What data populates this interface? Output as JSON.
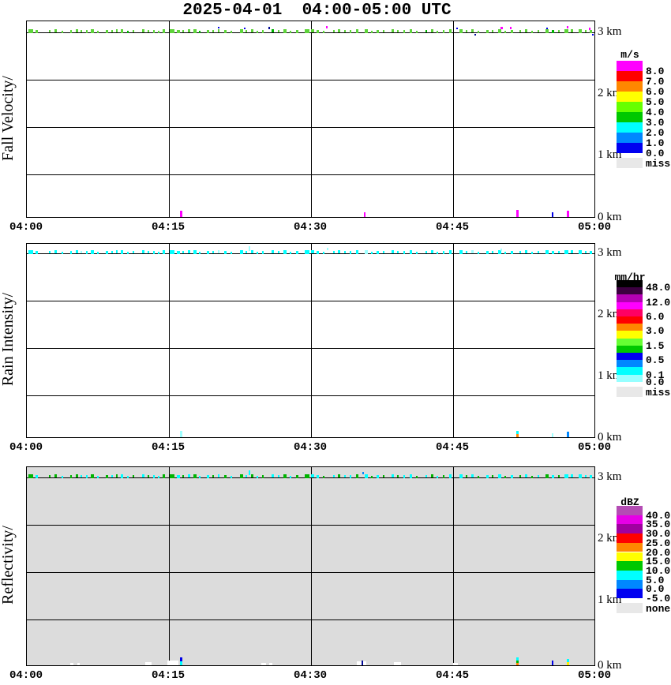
{
  "title": "2025-04-01  04:00-05:00 UTC",
  "axis": {
    "x_ticks": [
      "04:00",
      "04:15",
      "04:30",
      "04:45",
      "05:00"
    ],
    "km_labels": [
      "3 km",
      "2 km",
      "1 km",
      "0 km"
    ]
  },
  "colors": {
    "g1": "#5ED43A",
    "g2": "#00B400",
    "cy": "#00FFFF",
    "pc": "#9EFFFF",
    "bl": "#0000E6",
    "nb": "#000896",
    "mg": "#FF00FF",
    "or": "#FF8700",
    "db": "#0087FF",
    "yw": "#FFF000",
    "wh": "#FFFFFF"
  },
  "band_segments": [
    [
      2,
      6,
      5,
      -4
    ],
    [
      11,
      3,
      4,
      -3
    ],
    [
      28,
      2,
      3,
      -3
    ],
    [
      35,
      3,
      4,
      -4
    ],
    [
      44,
      2,
      3,
      -2
    ],
    [
      55,
      2,
      4,
      -3
    ],
    [
      62,
      3,
      4,
      -4
    ],
    [
      68,
      2,
      3,
      -3
    ],
    [
      75,
      2,
      4,
      -3
    ],
    [
      81,
      4,
      5,
      -4
    ],
    [
      89,
      2,
      3,
      -2
    ],
    [
      100,
      3,
      4,
      -3
    ],
    [
      107,
      2,
      3,
      -3
    ],
    [
      113,
      2,
      4,
      -4
    ],
    [
      119,
      3,
      5,
      -4
    ],
    [
      127,
      2,
      3,
      -2
    ],
    [
      134,
      2,
      3,
      -3
    ],
    [
      146,
      3,
      4,
      -4
    ],
    [
      153,
      2,
      3,
      -3
    ],
    [
      160,
      2,
      4,
      -3
    ],
    [
      166,
      2,
      3,
      -2
    ],
    [
      172,
      3,
      5,
      -4
    ],
    [
      181,
      6,
      5,
      -4
    ],
    [
      190,
      4,
      4,
      -3
    ],
    [
      197,
      2,
      3,
      -3
    ],
    [
      204,
      3,
      4,
      -4
    ],
    [
      211,
      4,
      5,
      -4
    ],
    [
      218,
      2,
      3,
      -2
    ],
    [
      228,
      3,
      4,
      -3
    ],
    [
      235,
      2,
      3,
      -3
    ],
    [
      242,
      2,
      4,
      -4
    ],
    [
      250,
      3,
      4,
      -3
    ],
    [
      258,
      2,
      3,
      -2
    ],
    [
      270,
      4,
      5,
      -4
    ],
    [
      277,
      2,
      3,
      -3
    ],
    [
      284,
      3,
      4,
      -4
    ],
    [
      291,
      2,
      3,
      -2
    ],
    [
      298,
      2,
      4,
      -3
    ],
    [
      310,
      3,
      4,
      -4
    ],
    [
      318,
      2,
      3,
      -3
    ],
    [
      325,
      4,
      5,
      -4
    ],
    [
      333,
      2,
      3,
      -2
    ],
    [
      341,
      3,
      4,
      -3
    ],
    [
      352,
      6,
      5,
      -4
    ],
    [
      360,
      4,
      4,
      -4
    ],
    [
      367,
      3,
      4,
      -3
    ],
    [
      375,
      2,
      3,
      -2
    ],
    [
      388,
      2,
      3,
      -3
    ],
    [
      394,
      3,
      4,
      -4
    ],
    [
      402,
      2,
      3,
      -3
    ],
    [
      409,
      2,
      4,
      -3
    ],
    [
      417,
      3,
      5,
      -4
    ],
    [
      428,
      4,
      5,
      -4
    ],
    [
      436,
      2,
      3,
      -2
    ],
    [
      443,
      3,
      4,
      -3
    ],
    [
      451,
      2,
      3,
      -3
    ],
    [
      462,
      3,
      4,
      -4
    ],
    [
      469,
      2,
      3,
      -3
    ],
    [
      477,
      2,
      4,
      -3
    ],
    [
      485,
      3,
      5,
      -4
    ],
    [
      493,
      2,
      3,
      -2
    ],
    [
      505,
      2,
      3,
      -3
    ],
    [
      512,
      3,
      4,
      -4
    ],
    [
      519,
      2,
      3,
      -2
    ],
    [
      527,
      2,
      4,
      -3
    ],
    [
      535,
      3,
      5,
      -4
    ],
    [
      548,
      4,
      5,
      -4
    ],
    [
      556,
      2,
      3,
      -3
    ],
    [
      563,
      3,
      4,
      -4
    ],
    [
      571,
      2,
      3,
      -2
    ],
    [
      582,
      3,
      4,
      -3
    ],
    [
      589,
      2,
      3,
      -3
    ],
    [
      597,
      4,
      5,
      -4
    ],
    [
      605,
      2,
      3,
      -2
    ],
    [
      613,
      3,
      4,
      -3
    ],
    [
      624,
      2,
      3,
      -3
    ],
    [
      631,
      3,
      4,
      -4
    ],
    [
      639,
      2,
      3,
      -2
    ],
    [
      647,
      2,
      3,
      -3
    ],
    [
      657,
      4,
      5,
      -4
    ],
    [
      665,
      3,
      4,
      -3
    ],
    [
      673,
      2,
      3,
      -3
    ],
    [
      681,
      5,
      5,
      -4
    ],
    [
      689,
      3,
      4,
      -4
    ],
    [
      699,
      4,
      5,
      -4
    ],
    [
      707,
      2,
      3,
      -3
    ],
    [
      713,
      3,
      4,
      -3
    ]
  ],
  "panels": [
    {
      "ylabel": "Fall Velocity/",
      "band_default": "g1",
      "band_override_color": "g2",
      "band_override_idx": [
        15,
        27,
        38,
        61,
        80
      ],
      "dots": [
        [
          242,
          2,
          2,
          -7,
          "bl"
        ],
        [
          275,
          2,
          2,
          -6,
          "bl"
        ],
        [
          306,
          2,
          3,
          -7,
          "nb"
        ],
        [
          379,
          2,
          3,
          -8,
          "mg"
        ],
        [
          544,
          2,
          2,
          -6,
          "bl"
        ],
        [
          567,
          2,
          2,
          2,
          "nb"
        ],
        [
          600,
          3,
          3,
          -7,
          "mg"
        ],
        [
          612,
          2,
          3,
          -7,
          "mg"
        ],
        [
          658,
          2,
          2,
          -6,
          "bl"
        ],
        [
          684,
          2,
          3,
          -8,
          "mg"
        ],
        [
          712,
          2,
          3,
          -6,
          "mg"
        ],
        [
          716,
          2,
          2,
          2,
          "bl"
        ]
      ],
      "bottom_marks": [
        [
          194,
          3,
          8,
          0,
          "mg"
        ],
        [
          427,
          2,
          6,
          0,
          "mg"
        ],
        [
          620,
          3,
          9,
          0,
          "mg"
        ],
        [
          665,
          2,
          6,
          0,
          "bl"
        ],
        [
          684,
          3,
          8,
          0,
          "mg"
        ]
      ],
      "legend": {
        "title": "m/s",
        "entries": [
          {
            "color": "#FF00FF",
            "label": "8.0"
          },
          {
            "color": "#FF0000",
            "label": "7.0"
          },
          {
            "color": "#FF8700",
            "label": "6.0"
          },
          {
            "color": "#FFFF00",
            "label": "5.0"
          },
          {
            "color": "#66FF00",
            "label": "4.0"
          },
          {
            "color": "#00C800",
            "label": "3.0"
          },
          {
            "color": "#00FFFF",
            "label": "2.0"
          },
          {
            "color": "#0087FF",
            "label": "1.0"
          },
          {
            "color": "#0000F0",
            "label": "0.0"
          }
        ],
        "miss": {
          "color": "#E8E8E8",
          "label": "miss"
        }
      }
    },
    {
      "ylabel": "Rain Intensity/",
      "band_default": "cy",
      "band_override_color": "pc",
      "band_override_idx": [
        7,
        30,
        52,
        68
      ],
      "dots": [
        [
          281,
          2,
          6,
          -9,
          "pc"
        ],
        [
          380,
          2,
          3,
          -7,
          "pc"
        ],
        [
          600,
          2,
          3,
          -6,
          "pc"
        ]
      ],
      "bottom_marks": [
        [
          194,
          3,
          8,
          0,
          "pc"
        ],
        [
          620,
          3,
          4,
          4,
          "cy"
        ],
        [
          620,
          3,
          4,
          0,
          "or"
        ],
        [
          665,
          2,
          5,
          0,
          "pc"
        ],
        [
          684,
          3,
          7,
          0,
          "db"
        ]
      ],
      "legend": {
        "title": "mm/hr",
        "entries": [
          {
            "color": "#000000",
            "label": "48.0"
          },
          {
            "color": "#3C0040",
            "label": ""
          },
          {
            "color": "#B400B4",
            "label": "12.0"
          },
          {
            "color": "#FF00FF",
            "label": ""
          },
          {
            "color": "#FF0064",
            "label": "6.0"
          },
          {
            "color": "#FF0000",
            "label": ""
          },
          {
            "color": "#FF8700",
            "label": "3.0"
          },
          {
            "color": "#FFFF00",
            "label": ""
          },
          {
            "color": "#66FF33",
            "label": "1.5"
          },
          {
            "color": "#00C800",
            "label": ""
          },
          {
            "color": "#0000F0",
            "label": "0.5"
          },
          {
            "color": "#0087FF",
            "label": ""
          },
          {
            "color": "#00FFFF",
            "label": "0.1"
          },
          {
            "color": "#96FFFF",
            "label": "0.0"
          }
        ],
        "miss": {
          "color": "#E8E8E8",
          "label": "miss"
        }
      }
    },
    {
      "ylabel": "Reflectivity/",
      "band_default": "cy",
      "band_override_color": "g2",
      "band_override_idx": [
        0,
        2,
        3,
        5,
        6,
        9,
        11,
        13,
        16,
        18,
        21,
        22,
        24,
        26,
        29,
        31,
        33,
        35,
        37,
        40,
        42,
        43,
        46,
        48,
        51,
        53,
        55,
        57,
        60,
        62,
        64,
        67,
        69,
        71,
        73,
        75,
        77,
        79,
        81
      ],
      "dots": [
        [
          281,
          2,
          6,
          -9,
          "cy"
        ],
        [
          425,
          2,
          3,
          -7,
          "db"
        ]
      ],
      "bottom_marks": [
        [
          55,
          4,
          3,
          0,
          "wh"
        ],
        [
          64,
          3,
          3,
          0,
          "wh"
        ],
        [
          150,
          8,
          4,
          0,
          "wh"
        ],
        [
          178,
          14,
          6,
          0,
          "wh"
        ],
        [
          194,
          3,
          5,
          5,
          "bl"
        ],
        [
          194,
          3,
          5,
          0,
          "cy"
        ],
        [
          297,
          6,
          3,
          0,
          "wh"
        ],
        [
          307,
          4,
          3,
          0,
          "wh"
        ],
        [
          418,
          12,
          5,
          0,
          "wh"
        ],
        [
          424,
          2,
          6,
          0,
          "nb"
        ],
        [
          465,
          9,
          4,
          0,
          "wh"
        ],
        [
          540,
          6,
          3,
          0,
          "wh"
        ],
        [
          620,
          3,
          4,
          6,
          "cy"
        ],
        [
          620,
          3,
          3,
          3,
          "g2"
        ],
        [
          620,
          3,
          3,
          0,
          "or"
        ],
        [
          665,
          2,
          6,
          0,
          "bl"
        ],
        [
          684,
          3,
          4,
          4,
          "cy"
        ],
        [
          684,
          3,
          4,
          0,
          "yw"
        ]
      ],
      "legend": {
        "title": "dBZ",
        "entries": [
          {
            "color": "#B44CB4",
            "label": "40.0"
          },
          {
            "color": "#E600E6",
            "label": "35.0"
          },
          {
            "color": "#A000A0",
            "label": "30.0"
          },
          {
            "color": "#FF0000",
            "label": "25.0"
          },
          {
            "color": "#FF8700",
            "label": "20.0"
          },
          {
            "color": "#FFFF00",
            "label": "15.0"
          },
          {
            "color": "#00C800",
            "label": "10.0"
          },
          {
            "color": "#00FFFF",
            "label": "5.0"
          },
          {
            "color": "#0087FF",
            "label": "0.0"
          },
          {
            "color": "#0000F0",
            "label": "-5.0"
          }
        ],
        "miss": {
          "color": "#E8E8E8",
          "label": "none"
        }
      }
    }
  ],
  "chart_data": [
    {
      "type": "heatmap",
      "title": "2025-04-01  04:00-05:00 UTC",
      "panel": "Fall Velocity",
      "units": "m/s",
      "x_ticks": [
        "04:00",
        "04:15",
        "04:30",
        "04:45",
        "05:00"
      ],
      "y_ticks_km": [
        0,
        1,
        2,
        3
      ],
      "ylim_km": [
        0,
        3.2
      ],
      "legend_bounds": [
        0.0,
        1.0,
        2.0,
        3.0,
        4.0,
        5.0,
        6.0,
        7.0,
        8.0
      ],
      "legend_position": "right",
      "grid": true,
      "data_summary": {
        "band_height_km": 3.05,
        "band_description": "intermittent patchy echo along ~3 km the whole hour, mostly 3-5 m/s (bright green), occasional 0-1 m/s (blue) and >8 m/s (magenta) pixels",
        "near_surface_echoes": [
          {
            "time": "04:16",
            "value": ">8 m/s (magenta)"
          },
          {
            "time": "04:36",
            "value": ">8 m/s (magenta)"
          },
          {
            "time": "04:52",
            "value": ">8 m/s (magenta)"
          },
          {
            "time": "04:55",
            "value": "0-1 m/s (blue)"
          },
          {
            "time": "04:57",
            "value": ">8 m/s (magenta)"
          }
        ]
      }
    },
    {
      "type": "heatmap",
      "panel": "Rain Intensity",
      "units": "mm/hr",
      "x_ticks": [
        "04:00",
        "04:15",
        "04:30",
        "04:45",
        "05:00"
      ],
      "y_ticks_km": [
        0,
        1,
        2,
        3
      ],
      "ylim_km": [
        0,
        3.2
      ],
      "legend_bounds": [
        0.0,
        0.1,
        0.5,
        1.5,
        3.0,
        6.0,
        12.0,
        48.0
      ],
      "legend_position": "right",
      "grid": true,
      "data_summary": {
        "band_height_km": 3.05,
        "band_description": "same patchy band at ~3 km, 0.1-0.5 mm/hr (cyan) with some 0-0.1 mm/hr (pale cyan)",
        "near_surface_echoes": [
          {
            "time": "04:16",
            "value": "0-0.1 mm/hr (pale cyan)"
          },
          {
            "time": "04:52",
            "value": "cyan over orange (0.1-0.5 over 3-6 mm/hr)"
          },
          {
            "time": "04:55",
            "value": "0-0.1 mm/hr (pale cyan)"
          },
          {
            "time": "04:57",
            "value": "0.1-0.5 mm/hr (blue)"
          }
        ]
      }
    },
    {
      "type": "heatmap",
      "panel": "Reflectivity",
      "units": "dBZ",
      "x_ticks": [
        "04:00",
        "04:15",
        "04:30",
        "04:45",
        "05:00"
      ],
      "y_ticks_km": [
        0,
        1,
        2,
        3
      ],
      "ylim_km": [
        0,
        3.2
      ],
      "legend_bounds": [
        -5.0,
        0.0,
        5.0,
        10.0,
        15.0,
        20.0,
        25.0,
        30.0,
        35.0,
        40.0
      ],
      "legend_position": "right",
      "background_fill": "none (light gray #DCDCDC)",
      "grid": true,
      "data_summary": {
        "band_height_km": 3.05,
        "band_description": "patchy band at ~3 km, mix of 5-10 dBZ (cyan) and 10-15 dBZ (green) on gray 'none' background",
        "near_surface_echoes": [
          {
            "time": "04:16",
            "value": "blue/cyan with white missing patches"
          },
          {
            "time": "04:36",
            "value": "dark blue with white patch"
          },
          {
            "time": "04:52",
            "value": "cyan/green/orange stack"
          },
          {
            "time": "04:55",
            "value": "blue"
          },
          {
            "time": "04:57",
            "value": "cyan over yellow"
          }
        ]
      }
    }
  ]
}
